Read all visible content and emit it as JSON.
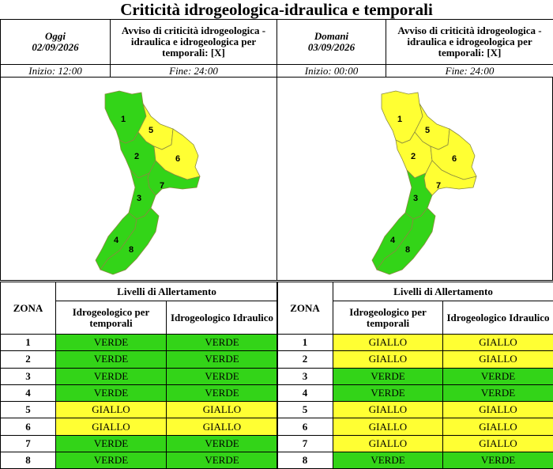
{
  "title": "Criticità idrogeologica-idraulica e temporali",
  "header": {
    "today": {
      "day_label": "Oggi",
      "date": "02/09/2026",
      "avviso": "Avviso di criticità idrogeologica - idraulica e idrogeologica per temporali: [X]",
      "start": "Inizio: 12:00",
      "end": "Fine: 24:00"
    },
    "tomorrow": {
      "day_label": "Domani",
      "date": "03/09/2026",
      "avviso": "Avviso di criticità idrogeologica - idraulica e idrogeologica per temporali: [X]",
      "start": "Inizio: 00:00",
      "end": "Fine: 24:00"
    }
  },
  "colors": {
    "verde": "#33d418",
    "giallo": "#ffff33"
  },
  "zone_labels": [
    "1",
    "2",
    "3",
    "4",
    "5",
    "6",
    "7",
    "8"
  ],
  "maps": {
    "today": {
      "1": "verde",
      "2": "verde",
      "3": "verde",
      "4": "verde",
      "5": "giallo",
      "6": "giallo",
      "7": "verde",
      "8": "verde"
    },
    "tomorrow": {
      "1": "giallo",
      "2": "giallo",
      "3": "verde",
      "4": "verde",
      "5": "giallo",
      "6": "giallo",
      "7": "giallo",
      "8": "verde"
    }
  },
  "levels": {
    "header_zona": "ZONA",
    "header_livelli": "Livelli di Allertamento",
    "header_temporali": "Idrogeologico per temporali",
    "header_idraulico": "Idrogeologico Idraulico",
    "today": [
      {
        "zona": "1",
        "temporali": "VERDE",
        "idraulico": "VERDE"
      },
      {
        "zona": "2",
        "temporali": "VERDE",
        "idraulico": "VERDE"
      },
      {
        "zona": "3",
        "temporali": "VERDE",
        "idraulico": "VERDE"
      },
      {
        "zona": "4",
        "temporali": "VERDE",
        "idraulico": "VERDE"
      },
      {
        "zona": "5",
        "temporali": "GIALLO",
        "idraulico": "GIALLO"
      },
      {
        "zona": "6",
        "temporali": "GIALLO",
        "idraulico": "GIALLO"
      },
      {
        "zona": "7",
        "temporali": "VERDE",
        "idraulico": "VERDE"
      },
      {
        "zona": "8",
        "temporali": "VERDE",
        "idraulico": "VERDE"
      }
    ],
    "tomorrow": [
      {
        "zona": "1",
        "temporali": "GIALLO",
        "idraulico": "GIALLO"
      },
      {
        "zona": "2",
        "temporali": "GIALLO",
        "idraulico": "GIALLO"
      },
      {
        "zona": "3",
        "temporali": "VERDE",
        "idraulico": "VERDE"
      },
      {
        "zona": "4",
        "temporali": "VERDE",
        "idraulico": "VERDE"
      },
      {
        "zona": "5",
        "temporali": "GIALLO",
        "idraulico": "GIALLO"
      },
      {
        "zona": "6",
        "temporali": "GIALLO",
        "idraulico": "GIALLO"
      },
      {
        "zona": "7",
        "temporali": "GIALLO",
        "idraulico": "GIALLO"
      },
      {
        "zona": "8",
        "temporali": "VERDE",
        "idraulico": "VERDE"
      }
    ]
  }
}
